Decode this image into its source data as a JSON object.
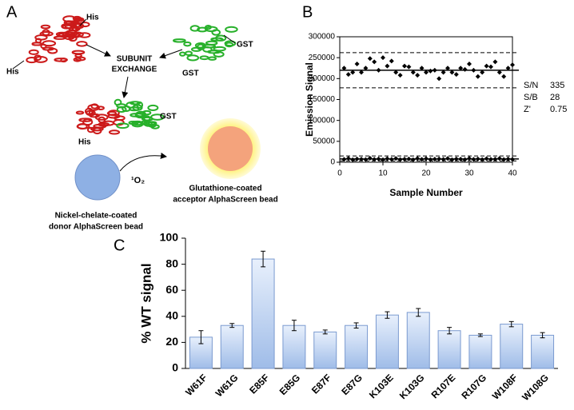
{
  "panels": {
    "a": "A",
    "b": "B",
    "c": "C"
  },
  "diagram": {
    "his_top": "His",
    "his_left": "His",
    "gst_right": "GST",
    "gst_left": "GST",
    "exchange": [
      "SUBUNIT",
      "EXCHANGE"
    ],
    "gst_complex": "GST",
    "his_complex": "His",
    "singlet_oxygen": "¹O₂",
    "acceptor": [
      "Glutathione-coated",
      "acceptor AlphaScreen bead"
    ],
    "donor": [
      "Nickel-chelate-coated",
      "donor AlphaScreen bead"
    ]
  },
  "chart_data": [
    {
      "type": "scatter",
      "xlabel": "Sample Number",
      "ylabel": "Emission Signal",
      "x": [
        1,
        2,
        3,
        4,
        5,
        6,
        7,
        8,
        9,
        10,
        11,
        12,
        13,
        14,
        15,
        16,
        17,
        18,
        19,
        20,
        21,
        22,
        23,
        24,
        25,
        26,
        27,
        28,
        29,
        30,
        31,
        32,
        33,
        34,
        35,
        36,
        37,
        38,
        39,
        40
      ],
      "series": [
        {
          "color": "#000000",
          "values": [
            225000,
            210000,
            215000,
            235000,
            215000,
            225000,
            248000,
            240000,
            220000,
            250000,
            230000,
            242000,
            215000,
            208000,
            230000,
            228000,
            215000,
            208000,
            225000,
            215000,
            218000,
            220000,
            200000,
            215000,
            225000,
            215000,
            210000,
            225000,
            222000,
            235000,
            220000,
            205000,
            215000,
            230000,
            228000,
            240000,
            215000,
            205000,
            225000,
            233000
          ]
        },
        {
          "color": "#000000",
          "values": [
            7000,
            9000,
            6000,
            8000,
            7500,
            6500,
            9500,
            7000,
            8000,
            6000,
            8500,
            7000,
            9000,
            6500,
            7500,
            8000,
            6000,
            9000,
            7000,
            8500,
            6500,
            7500,
            8000,
            7000,
            9000,
            6000,
            8000,
            7500,
            6500,
            9000,
            7000,
            8000,
            6500,
            8500,
            7000,
            7500,
            9000,
            6500,
            8000,
            7000
          ]
        }
      ],
      "solid_lines": [
        220000,
        8000
      ],
      "dashed_lines": [
        262000,
        178000,
        15000,
        3000
      ],
      "xlim": [
        0,
        40
      ],
      "xticks": [
        0,
        10,
        20,
        30,
        40
      ],
      "ylim": [
        0,
        300000
      ],
      "yticks": [
        0,
        50000,
        100000,
        150000,
        200000,
        250000,
        300000
      ],
      "stats": [
        {
          "name": "S/N",
          "value": "335"
        },
        {
          "name": "S/B",
          "value": "28"
        },
        {
          "name": "Z'",
          "value": "0.75"
        }
      ]
    },
    {
      "type": "bar",
      "ylabel": "% WT signal",
      "categories": [
        "W61F",
        "W61G",
        "E85F",
        "E85G",
        "E87F",
        "E87G",
        "K103E",
        "K103G",
        "R107E",
        "R107G",
        "W108F",
        "W108G"
      ],
      "values": [
        24,
        33,
        84,
        33,
        28,
        33,
        41,
        43,
        29,
        25.5,
        34,
        25.5
      ],
      "errors": [
        5,
        1.5,
        6,
        4,
        1.5,
        2,
        2.5,
        3,
        2.5,
        1,
        2,
        2
      ],
      "color": "#b8cff0",
      "ylim": [
        0,
        100
      ],
      "yticks": [
        0,
        20,
        40,
        60,
        80,
        100
      ]
    }
  ]
}
